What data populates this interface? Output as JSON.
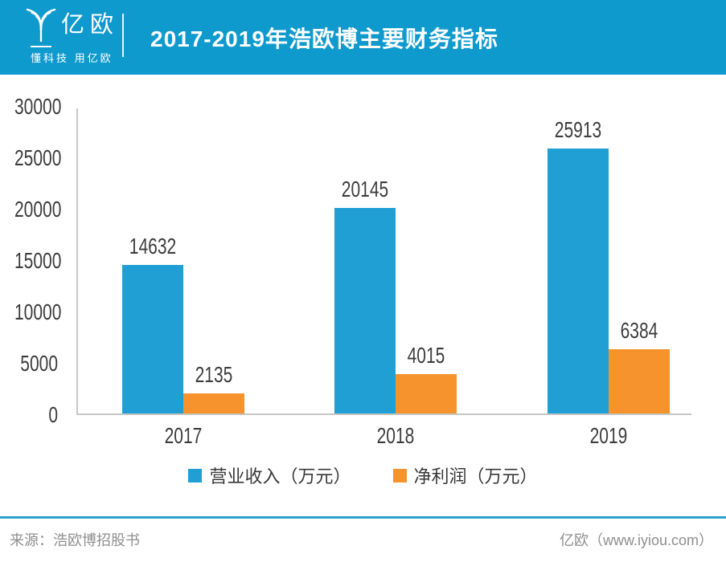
{
  "header": {
    "logo_text": "亿欧",
    "logo_tagline": "懂科技 用亿欧",
    "title": "2017-2019年浩欧博主要财务指标"
  },
  "chart_data": {
    "type": "bar",
    "title": "2017-2019年浩欧博主要财务指标",
    "categories": [
      "2017",
      "2018",
      "2019"
    ],
    "series": [
      {
        "name": "营业收入（万元）",
        "color": "#209fd4",
        "values": [
          14632,
          20145,
          25913
        ]
      },
      {
        "name": "净利润（万元）",
        "color": "#f6932c",
        "values": [
          2135,
          4015,
          6384
        ]
      }
    ],
    "ylim": [
      0,
      30000
    ],
    "yticks": [
      0,
      5000,
      10000,
      15000,
      20000,
      25000,
      30000
    ],
    "grid": false,
    "legend_position": "bottom",
    "data_labels": true
  },
  "footer": {
    "source": "来源：浩欧博招股书",
    "branding": "亿欧（www.iyiou.com）"
  },
  "colors": {
    "header_bg": "#0f9ace",
    "bar_blue": "#209fd4",
    "bar_orange": "#f6932c",
    "axis_line": "#c8c8c8",
    "footer_line": "#2ba1ce",
    "number_text": "#3d3d3d",
    "footer_text": "#8f8f8f"
  }
}
